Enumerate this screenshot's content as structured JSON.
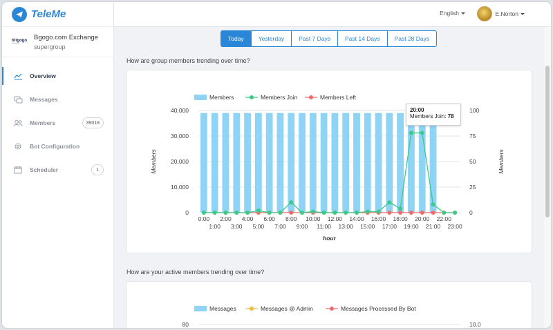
{
  "app": {
    "name": "TeleMe"
  },
  "group": {
    "name": "Bgogo.com Exchange",
    "type": "supergroup",
    "logo_text": "bitgogo"
  },
  "nav": [
    {
      "label": "Overview",
      "icon": "chart-icon",
      "active": true,
      "badge": ""
    },
    {
      "label": "Messages",
      "icon": "chat-icon",
      "active": false,
      "badge": ""
    },
    {
      "label": "Members",
      "icon": "users-icon",
      "active": false,
      "badge": "39018"
    },
    {
      "label": "Bot Configuration",
      "icon": "gear-icon",
      "active": false,
      "badge": ""
    },
    {
      "label": "Scheduler",
      "icon": "calendar-icon",
      "active": false,
      "badge": "1"
    }
  ],
  "header": {
    "language": "English",
    "user": "E.Norton"
  },
  "range_tabs": [
    {
      "label": "Today",
      "active": true
    },
    {
      "label": "Yesterday",
      "active": false
    },
    {
      "label": "Past 7 Days",
      "active": false
    },
    {
      "label": "Past 14 Days",
      "active": false
    },
    {
      "label": "Past 28 Days",
      "active": false
    }
  ],
  "sections": {
    "trend_title": "How are group members trending over time?",
    "active_title": "How are your active members trending over time?"
  },
  "tooltip": {
    "time": "20:00",
    "label": "Members Join:",
    "value": "78"
  },
  "colors": {
    "accent": "#2a86d6",
    "bar": "#8fd3f5",
    "join": "#3cc98a",
    "left": "#ef6b6b",
    "admin": "#f5b942"
  },
  "chart_data": [
    {
      "type": "bar",
      "x": [
        "0:00",
        "1:00",
        "2:00",
        "3:00",
        "4:00",
        "5:00",
        "6:00",
        "7:00",
        "8:00",
        "9:00",
        "10:00",
        "11:00",
        "12:00",
        "13:00",
        "14:00",
        "15:00",
        "16:00",
        "17:00",
        "18:00",
        "19:00",
        "20:00",
        "21:00",
        "22:00",
        "23:00"
      ],
      "series": [
        {
          "name": "Members",
          "type": "bar",
          "axis": "left",
          "values": [
            39000,
            39000,
            39000,
            39000,
            39000,
            39000,
            39000,
            39000,
            39000,
            39000,
            39000,
            39000,
            39000,
            39000,
            39000,
            39000,
            39000,
            39000,
            39000,
            39000,
            39000,
            39000,
            null,
            null
          ]
        },
        {
          "name": "Members Join",
          "type": "line",
          "axis": "right",
          "values": [
            0,
            0,
            0,
            0,
            0,
            2,
            0,
            0,
            10,
            0,
            1,
            0,
            0,
            0,
            0,
            1,
            1,
            10,
            4,
            78,
            78,
            8,
            0,
            0
          ]
        },
        {
          "name": "Members Left",
          "type": "line",
          "axis": "right",
          "values": [
            0,
            0,
            0,
            0,
            0,
            0,
            0,
            0,
            0,
            0,
            0,
            0,
            0,
            0,
            0,
            0,
            0,
            0,
            0,
            0,
            0,
            0,
            0,
            0
          ]
        }
      ],
      "ylabel": "Members",
      "y2label": "Members",
      "xlabel": "hour",
      "ylim": [
        0,
        40000
      ],
      "y2lim": [
        0,
        100
      ],
      "yticks": [
        "0",
        "10,000",
        "20,000",
        "30,000",
        "40,000"
      ],
      "y2ticks": [
        "0",
        "25",
        "50",
        "75",
        "100"
      ],
      "legend": "top"
    },
    {
      "type": "bar",
      "series": [
        {
          "name": "Messages",
          "type": "bar"
        },
        {
          "name": "Messages @ Admin",
          "type": "line"
        },
        {
          "name": "Messages Processed By Bot",
          "type": "line"
        }
      ],
      "ylim": [
        0,
        80
      ],
      "y2lim": [
        0,
        10.0
      ],
      "yticks_visible": [
        "80"
      ],
      "y2ticks_visible": [
        "10.0"
      ],
      "legend": "top"
    }
  ]
}
